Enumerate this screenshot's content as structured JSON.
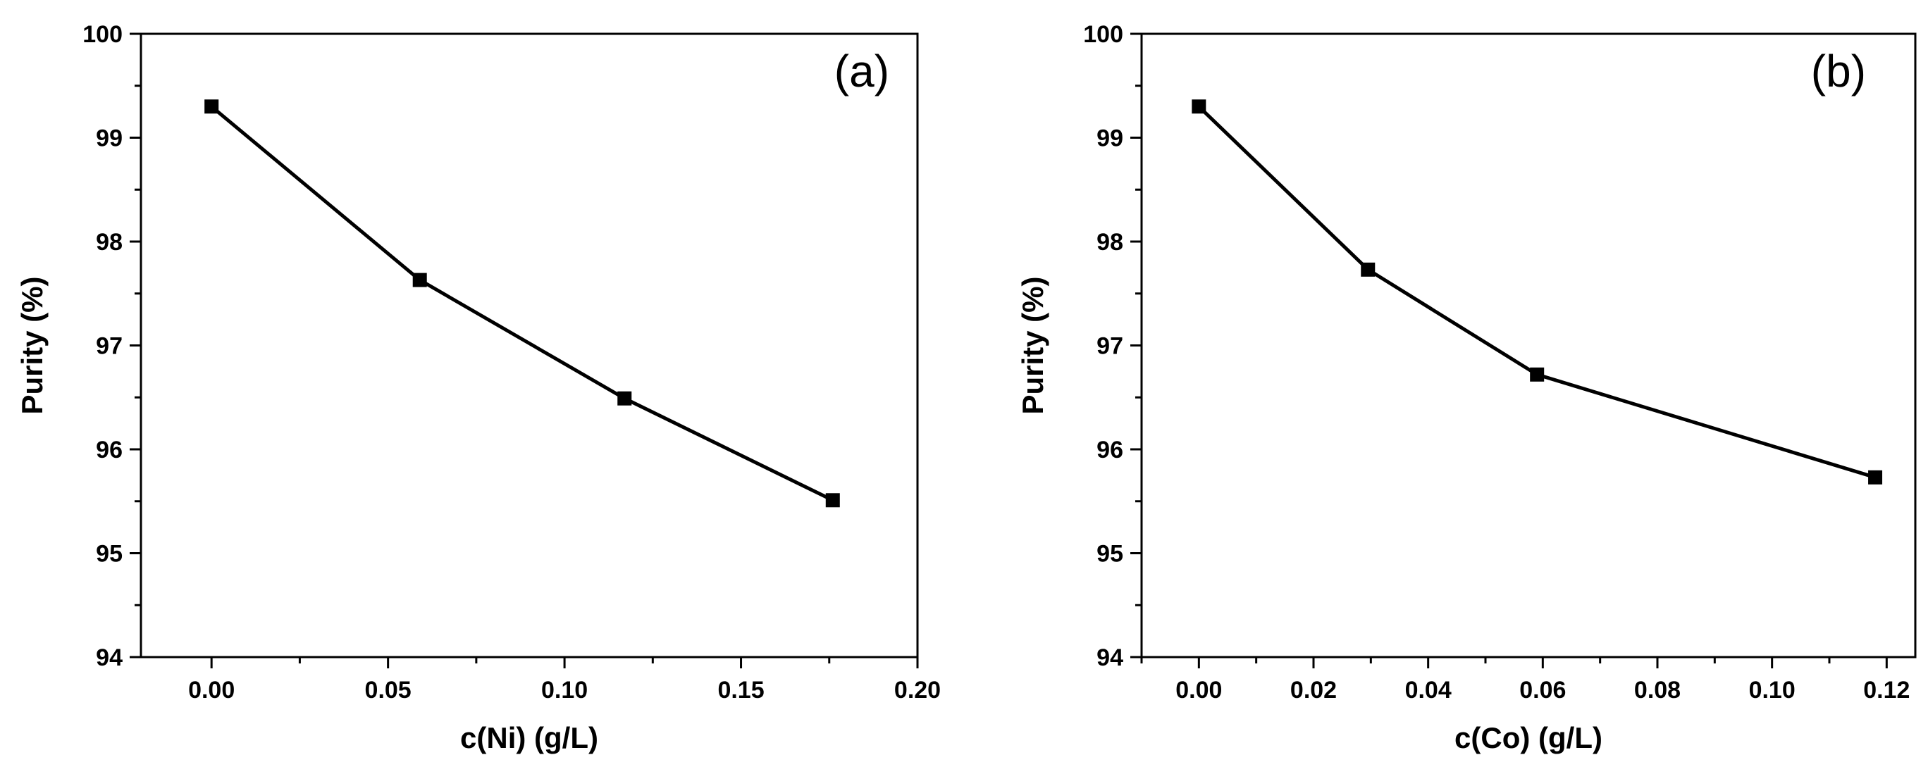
{
  "chart_data": [
    {
      "type": "line",
      "panel_label": "(a)",
      "title": "",
      "xlabel": "c(Ni) (g/L)",
      "ylabel": "Purity (%)",
      "xlim": [
        -0.02,
        0.2
      ],
      "ylim": [
        94,
        100
      ],
      "xticks": [
        0.0,
        0.05,
        0.1,
        0.15,
        0.2
      ],
      "xtick_labels": [
        "0.00",
        "0.05",
        "0.10",
        "0.15",
        "0.20"
      ],
      "yticks": [
        94,
        95,
        96,
        97,
        98,
        99,
        100
      ],
      "ytick_labels": [
        "94",
        "95",
        "96",
        "97",
        "98",
        "99",
        "100"
      ],
      "grid": false,
      "marker": "square",
      "series": [
        {
          "name": "Purity",
          "x": [
            0.0,
            0.059,
            0.117,
            0.176
          ],
          "y": [
            99.3,
            97.63,
            96.49,
            95.51
          ]
        }
      ]
    },
    {
      "type": "line",
      "panel_label": "(b)",
      "title": "",
      "xlabel": "c(Co) (g/L)",
      "ylabel": "Purity (%)",
      "xlim": [
        -0.01,
        0.125
      ],
      "ylim": [
        94,
        100
      ],
      "xticks": [
        0.0,
        0.02,
        0.04,
        0.06,
        0.08,
        0.1,
        0.12
      ],
      "xtick_labels": [
        "0.00",
        "0.02",
        "0.04",
        "0.06",
        "0.08",
        "0.10",
        "0.12"
      ],
      "yticks": [
        94,
        95,
        96,
        97,
        98,
        99,
        100
      ],
      "ytick_labels": [
        "94",
        "95",
        "96",
        "97",
        "98",
        "99",
        "100"
      ],
      "grid": false,
      "marker": "square",
      "series": [
        {
          "name": "Purity",
          "x": [
            0.0,
            0.0295,
            0.059,
            0.118
          ],
          "y": [
            99.3,
            97.73,
            96.72,
            95.73
          ]
        }
      ]
    }
  ]
}
